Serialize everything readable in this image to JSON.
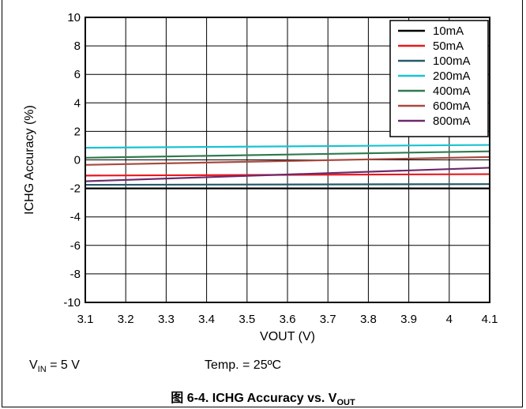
{
  "chart_data": {
    "type": "line",
    "xlabel": "VOUT (V)",
    "ylabel": "ICHG Accuracy (%)",
    "xlim": [
      3.1,
      4.1
    ],
    "ylim": [
      -10,
      10
    ],
    "x_ticks": [
      "3.1",
      "3.2",
      "3.3",
      "3.4",
      "3.5",
      "3.6",
      "3.7",
      "3.8",
      "3.9",
      "4",
      "4.1"
    ],
    "y_ticks": [
      "-10",
      "-8",
      "-6",
      "-4",
      "-2",
      "0",
      "2",
      "4",
      "6",
      "8",
      "10"
    ],
    "grid": true,
    "legend_position": "top-right",
    "x": [
      3.1,
      4.1
    ],
    "series": [
      {
        "name": "10mA",
        "color": "#000000",
        "values": [
          -2.0,
          -2.0
        ]
      },
      {
        "name": "50mA",
        "color": "#e8191e",
        "values": [
          -1.1,
          -1.0
        ]
      },
      {
        "name": "100mA",
        "color": "#245a6a",
        "values": [
          -1.75,
          -1.7
        ]
      },
      {
        "name": "200mA",
        "color": "#19c3d1",
        "values": [
          0.85,
          1.05
        ]
      },
      {
        "name": "400mA",
        "color": "#2e7a4e",
        "values": [
          0.15,
          0.6
        ]
      },
      {
        "name": "600mA",
        "color": "#a8493f",
        "values": [
          -0.35,
          0.2
        ]
      },
      {
        "name": "800mA",
        "color": "#6b2a6b",
        "values": [
          -1.5,
          -0.55
        ]
      }
    ]
  },
  "conditions": {
    "vin_symbol": "V",
    "vin_sub": "IN",
    "vin_value": " = 5 V",
    "temp": "Temp. = 25ºC"
  },
  "caption": {
    "prefix": "图 6-4. ICHG Accuracy vs. V",
    "sub": "OUT"
  }
}
